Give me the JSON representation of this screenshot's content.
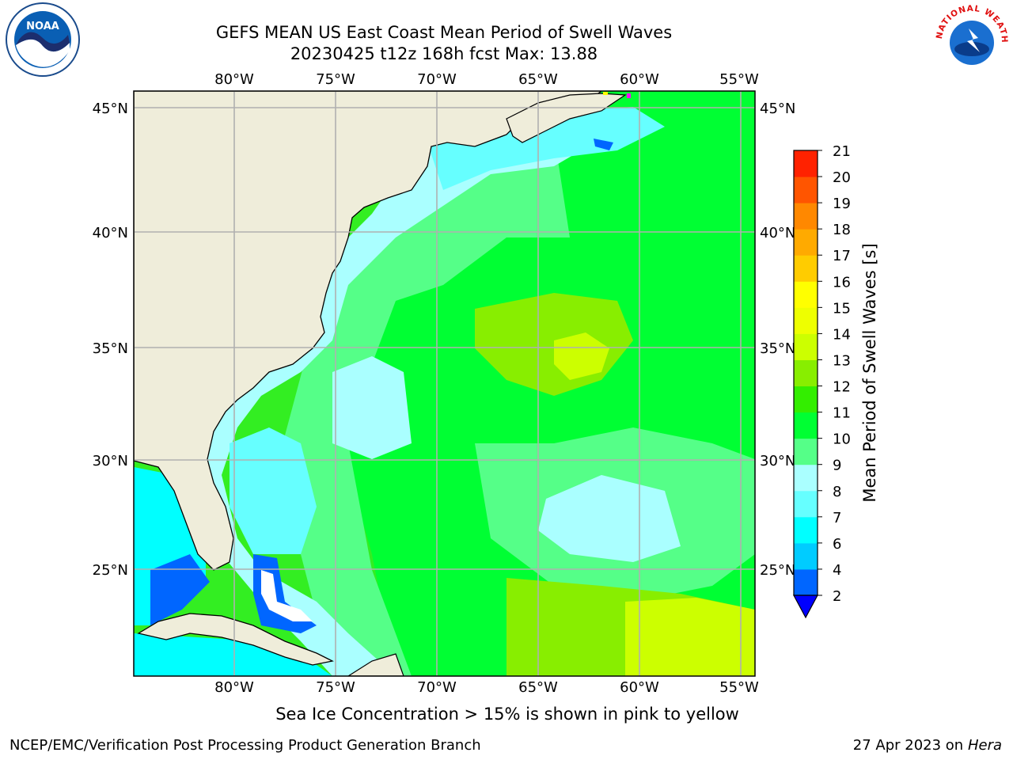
{
  "header": {
    "title_line1": "GEFS MEAN US East Coast Mean Period of Swell Waves",
    "title_line2": "20230425 t12z 168h fcst   Max: 13.88"
  },
  "map": {
    "lon_ticks": [
      "80°W",
      "75°W",
      "70°W",
      "65°W",
      "60°W",
      "55°W"
    ],
    "lat_ticks": [
      "45°N",
      "40°N",
      "35°N",
      "30°N",
      "25°N"
    ],
    "lon_range": [
      -85,
      -54.5
    ],
    "lat_range": [
      20.5,
      45.8
    ],
    "land_color": "#efedda",
    "grid_color": "#b0b0b0"
  },
  "colorbar": {
    "label": "Mean Period of Swell Waves [s]",
    "ticks": [
      "2",
      "4",
      "6",
      "7",
      "8",
      "9",
      "10",
      "11",
      "12",
      "13",
      "14",
      "15",
      "16",
      "17",
      "18",
      "19",
      "20",
      "21"
    ],
    "colors": [
      "#0066ff",
      "#00ccff",
      "#00ffff",
      "#66ffff",
      "#aaffff",
      "#55ff88",
      "#00ff33",
      "#33ee00",
      "#88ee00",
      "#ccff00",
      "#eeff00",
      "#ffff00",
      "#ffcc00",
      "#ffaa00",
      "#ff8800",
      "#ff5500",
      "#ff2200",
      "#ff0000"
    ],
    "extend_color": "#0000ff"
  },
  "footer": {
    "note": "Sea Ice Concentration > 15% is shown in pink to yellow",
    "credit": "NCEP/EMC/Verification Post Processing Product Generation Branch",
    "date": "27 Apr 2023 on",
    "machine": "Hera"
  },
  "logos": {
    "left": "NOAA",
    "right_text": "NATIONAL WEATHER SERVICE"
  }
}
